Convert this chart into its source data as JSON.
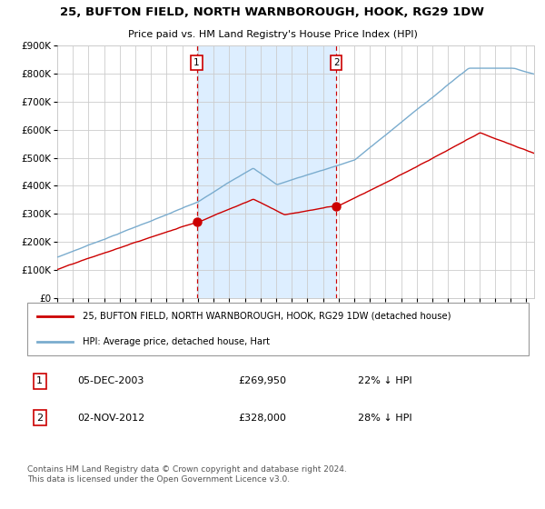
{
  "title": "25, BUFTON FIELD, NORTH WARNBOROUGH, HOOK, RG29 1DW",
  "subtitle": "Price paid vs. HM Land Registry's House Price Index (HPI)",
  "legend_line1": "25, BUFTON FIELD, NORTH WARNBOROUGH, HOOK, RG29 1DW (detached house)",
  "legend_line2": "HPI: Average price, detached house, Hart",
  "annotation1_date": "05-DEC-2003",
  "annotation1_price": "£269,950",
  "annotation1_pct": "22% ↓ HPI",
  "annotation2_date": "02-NOV-2012",
  "annotation2_price": "£328,000",
  "annotation2_pct": "28% ↓ HPI",
  "footer": "Contains HM Land Registry data © Crown copyright and database right 2024.\nThis data is licensed under the Open Government Licence v3.0.",
  "red_line_color": "#cc0000",
  "blue_line_color": "#7aacce",
  "shade_color": "#ddeeff",
  "vline_color": "#cc0000",
  "marker_color": "#cc0000",
  "grid_color": "#cccccc",
  "background_color": "#ffffff",
  "annotation_box_color": "#cc0000",
  "ylim": [
    0,
    900000
  ],
  "yticks": [
    0,
    100000,
    200000,
    300000,
    400000,
    500000,
    600000,
    700000,
    800000,
    900000
  ],
  "ytick_labels": [
    "£0",
    "£100K",
    "£200K",
    "£300K",
    "£400K",
    "£500K",
    "£600K",
    "£700K",
    "£800K",
    "£900K"
  ],
  "sale1_x": 2003.92,
  "sale1_y": 269950,
  "sale2_x": 2012.84,
  "sale2_y": 328000,
  "shade_x1": 2003.92,
  "shade_x2": 2012.84,
  "xlim_start": 1995.0,
  "xlim_end": 2025.5
}
